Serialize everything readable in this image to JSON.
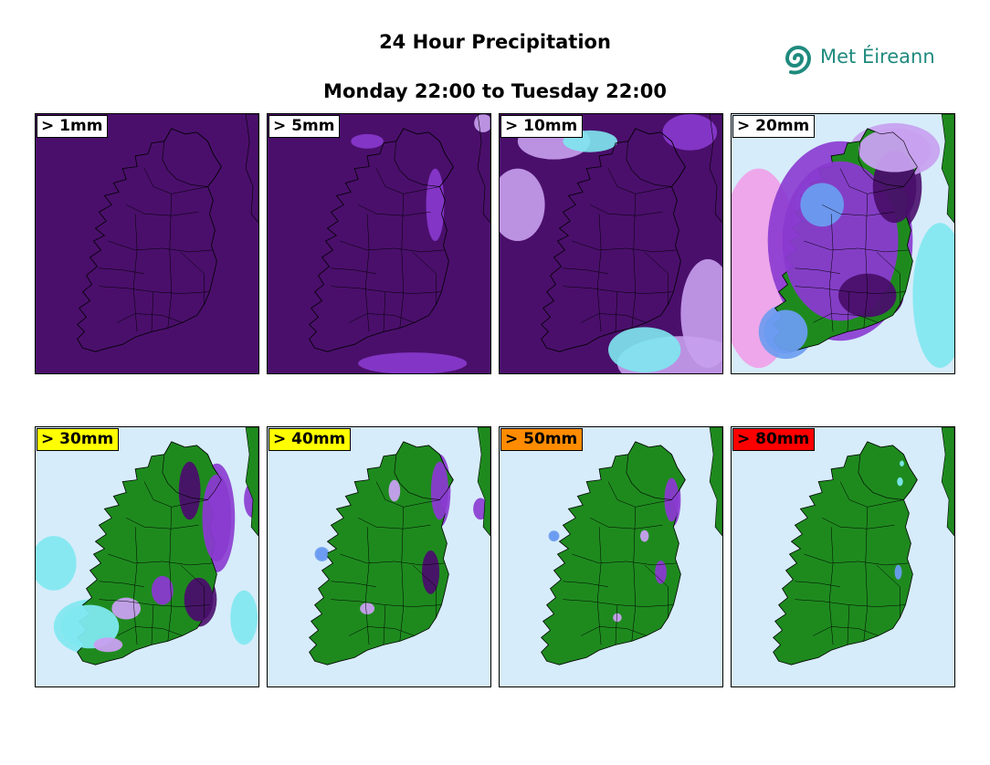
{
  "header": {
    "title": "24 Hour Precipitation",
    "subtitle": "Monday 22:00 to Tuesday 22:00",
    "logo_text": "Met Éireann"
  },
  "colors": {
    "brand": "#1f8a7e",
    "land": "#1e8a1e",
    "sea_low": "#d6ecfa",
    "cyan": "#7fe8ef",
    "blue": "#6a9cf0",
    "lavender": "#c8a0f0",
    "violet": "#8a3ad0",
    "deep_purple": "#4a0f6b"
  },
  "panels": [
    {
      "label": "> 1mm",
      "label_bg": "#ffffff",
      "background": "#4a0f6b",
      "coverage": "full"
    },
    {
      "label": "> 5mm",
      "label_bg": "#ffffff",
      "background": "#4a0f6b",
      "coverage": "full"
    },
    {
      "label": "> 10mm",
      "label_bg": "#ffffff",
      "background": "#4a0f6b",
      "coverage": "most"
    },
    {
      "label": "> 20mm",
      "label_bg": "#ffffff",
      "background": "#d6ecfa",
      "coverage": "heavy"
    },
    {
      "label": "> 30mm",
      "label_bg": "#ffff00",
      "background": "#d6ecfa",
      "coverage": "moderate"
    },
    {
      "label": "> 40mm",
      "label_bg": "#ffff00",
      "background": "#d6ecfa",
      "coverage": "low"
    },
    {
      "label": "> 50mm",
      "label_bg": "#ff8c00",
      "background": "#d6ecfa",
      "coverage": "sparse"
    },
    {
      "label": "> 80mm",
      "label_bg": "#ff0000",
      "background": "#d6ecfa",
      "coverage": "minimal"
    }
  ]
}
